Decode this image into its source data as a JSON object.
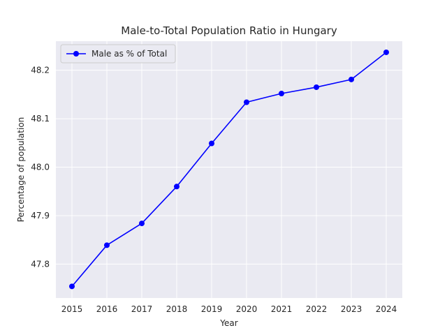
{
  "chart_data": {
    "type": "line",
    "title": "Male-to-Total Population Ratio in Hungary",
    "xlabel": "Year",
    "ylabel": "Percentage of population",
    "x": [
      2015,
      2016,
      2017,
      2018,
      2019,
      2020,
      2021,
      2022,
      2023,
      2024
    ],
    "xticks": [
      "2015",
      "2016",
      "2017",
      "2018",
      "2019",
      "2020",
      "2021",
      "2022",
      "2023",
      "2024"
    ],
    "yticks": [
      "47.8",
      "47.9",
      "48.0",
      "48.1",
      "48.2"
    ],
    "ytick_values": [
      47.8,
      47.9,
      48.0,
      48.1,
      48.2
    ],
    "ylim": [
      47.73,
      48.26
    ],
    "grid": true,
    "legend_placement": "top-left",
    "series": [
      {
        "name": "Male as % of Total",
        "color": "#0000ff",
        "marker": "circle",
        "values": [
          47.754,
          47.839,
          47.884,
          47.96,
          48.049,
          48.134,
          48.152,
          48.165,
          48.181,
          48.237
        ]
      }
    ]
  },
  "style": {
    "plot_background": "#eaeaf2",
    "grid_color": "#ffffff",
    "text_color": "#262626"
  }
}
